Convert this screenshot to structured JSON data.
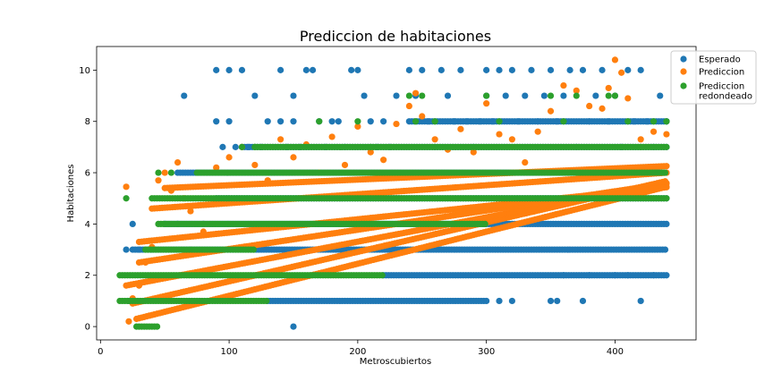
{
  "chart_data": {
    "type": "scatter",
    "title": "Prediccion de habitaciones",
    "xlabel": "Metroscubiertos",
    "ylabel": "Habitaciones",
    "xlim": [
      -3,
      463
    ],
    "ylim": [
      -0.52,
      10.92
    ],
    "xticks": [
      0,
      100,
      200,
      300,
      400
    ],
    "yticks": [
      0,
      2,
      4,
      6,
      8,
      10
    ],
    "legend_position": "top-right",
    "grid": false,
    "series": [
      {
        "name": "Esperado",
        "color": "#1f77b4",
        "points": [
          [
            20,
            3
          ],
          [
            25,
            4
          ],
          [
            22,
            1
          ],
          [
            30,
            3
          ],
          [
            40,
            3
          ],
          [
            50,
            4
          ],
          [
            60,
            4
          ],
          [
            65,
            9
          ],
          [
            70,
            3
          ],
          [
            80,
            4
          ],
          [
            90,
            10
          ],
          [
            90,
            8
          ],
          [
            95,
            7
          ],
          [
            100,
            10
          ],
          [
            100,
            8
          ],
          [
            105,
            7
          ],
          [
            110,
            10
          ],
          [
            115,
            7
          ],
          [
            120,
            9
          ],
          [
            125,
            7
          ],
          [
            130,
            8
          ],
          [
            140,
            10
          ],
          [
            140,
            8
          ],
          [
            145,
            7
          ],
          [
            150,
            9
          ],
          [
            150,
            8
          ],
          [
            155,
            7
          ],
          [
            160,
            10
          ],
          [
            165,
            10
          ],
          [
            170,
            8
          ],
          [
            175,
            7
          ],
          [
            180,
            8
          ],
          [
            185,
            8
          ],
          [
            190,
            7
          ],
          [
            195,
            10
          ],
          [
            200,
            10
          ],
          [
            205,
            9
          ],
          [
            210,
            8
          ],
          [
            215,
            7
          ],
          [
            220,
            8
          ],
          [
            225,
            7
          ],
          [
            230,
            9
          ],
          [
            240,
            10
          ],
          [
            245,
            9
          ],
          [
            250,
            10
          ],
          [
            255,
            8
          ],
          [
            260,
            7
          ],
          [
            265,
            10
          ],
          [
            270,
            9
          ],
          [
            275,
            8
          ],
          [
            280,
            10
          ],
          [
            285,
            8
          ],
          [
            290,
            7
          ],
          [
            295,
            8
          ],
          [
            300,
            10
          ],
          [
            300,
            9
          ],
          [
            305,
            8
          ],
          [
            310,
            10
          ],
          [
            315,
            9
          ],
          [
            320,
            10
          ],
          [
            325,
            8
          ],
          [
            330,
            9
          ],
          [
            335,
            10
          ],
          [
            340,
            8
          ],
          [
            345,
            9
          ],
          [
            350,
            10
          ],
          [
            355,
            8
          ],
          [
            360,
            9
          ],
          [
            365,
            10
          ],
          [
            370,
            7
          ],
          [
            375,
            10
          ],
          [
            380,
            8
          ],
          [
            385,
            9
          ],
          [
            390,
            10
          ],
          [
            395,
            8
          ],
          [
            400,
            9
          ],
          [
            405,
            7
          ],
          [
            410,
            10
          ],
          [
            415,
            8
          ],
          [
            420,
            10
          ],
          [
            425,
            8
          ],
          [
            430,
            7
          ],
          [
            435,
            9
          ],
          [
            440,
            8
          ],
          [
            310,
            1
          ],
          [
            320,
            1
          ],
          [
            350,
            1
          ],
          [
            355,
            1
          ],
          [
            375,
            1
          ],
          [
            420,
            1
          ],
          [
            360,
            2
          ],
          [
            380,
            2
          ],
          [
            400,
            2
          ],
          [
            410,
            2
          ],
          [
            430,
            2
          ],
          [
            150,
            0
          ]
        ],
        "bands": [
          {
            "y": 1,
            "x0": 130,
            "x1": 300
          },
          {
            "y": 2,
            "x0": 220,
            "x1": 440
          },
          {
            "y": 3,
            "x0": 25,
            "x1": 440
          },
          {
            "y": 4,
            "x0": 50,
            "x1": 440
          },
          {
            "y": 5,
            "x0": 90,
            "x1": 440
          },
          {
            "y": 6,
            "x0": 60,
            "x1": 440
          },
          {
            "y": 7,
            "x0": 110,
            "x1": 440
          },
          {
            "y": 8,
            "x0": 240,
            "x1": 440
          }
        ]
      },
      {
        "name": "Prediccion",
        "color": "#ff7f0e",
        "points": [
          [
            20,
            5.45
          ],
          [
            22,
            0.2
          ],
          [
            25,
            1.1
          ],
          [
            30,
            1.6
          ],
          [
            35,
            2.5
          ],
          [
            40,
            3.1
          ],
          [
            45,
            5.7
          ],
          [
            50,
            6.0
          ],
          [
            55,
            5.3
          ],
          [
            60,
            6.4
          ],
          [
            65,
            5.0
          ],
          [
            70,
            4.5
          ],
          [
            80,
            3.7
          ],
          [
            90,
            6.2
          ],
          [
            100,
            6.6
          ],
          [
            110,
            7.0
          ],
          [
            120,
            6.3
          ],
          [
            130,
            5.7
          ],
          [
            140,
            7.3
          ],
          [
            150,
            6.6
          ],
          [
            160,
            7.1
          ],
          [
            170,
            6.0
          ],
          [
            180,
            7.4
          ],
          [
            190,
            6.3
          ],
          [
            200,
            7.8
          ],
          [
            210,
            6.8
          ],
          [
            220,
            6.5
          ],
          [
            230,
            7.9
          ],
          [
            240,
            8.6
          ],
          [
            245,
            9.1
          ],
          [
            250,
            8.2
          ],
          [
            260,
            7.3
          ],
          [
            270,
            6.9
          ],
          [
            280,
            7.7
          ],
          [
            290,
            6.8
          ],
          [
            300,
            8.7
          ],
          [
            310,
            7.5
          ],
          [
            320,
            7.3
          ],
          [
            330,
            6.4
          ],
          [
            340,
            7.6
          ],
          [
            350,
            8.4
          ],
          [
            360,
            9.4
          ],
          [
            370,
            9.2
          ],
          [
            380,
            8.6
          ],
          [
            390,
            8.5
          ],
          [
            395,
            9.3
          ],
          [
            400,
            10.4
          ],
          [
            405,
            9.9
          ],
          [
            410,
            8.9
          ],
          [
            420,
            7.3
          ],
          [
            430,
            7.6
          ],
          [
            440,
            7.5
          ]
        ],
        "bands": [
          {
            "y0": 0.3,
            "x0": 28,
            "x1": 440,
            "slope": 0.0125
          },
          {
            "y0": 0.9,
            "x0": 25,
            "x1": 440,
            "slope": 0.0115
          },
          {
            "y0": 1.6,
            "x0": 20,
            "x1": 440,
            "slope": 0.0095
          },
          {
            "y0": 2.5,
            "x0": 30,
            "x1": 440,
            "slope": 0.0075
          },
          {
            "y0": 3.3,
            "x0": 30,
            "x1": 440,
            "slope": 0.0052
          },
          {
            "y0": 4.6,
            "x0": 40,
            "x1": 440,
            "slope": 0.0035
          },
          {
            "y0": 5.4,
            "x0": 50,
            "x1": 440,
            "slope": 0.0022
          }
        ]
      },
      {
        "name": "Prediccion\nredondeado",
        "color": "#2ca02c",
        "points": [
          [
            20,
            5
          ],
          [
            45,
            6
          ],
          [
            55,
            6
          ],
          [
            110,
            7
          ],
          [
            120,
            7
          ],
          [
            170,
            8
          ],
          [
            200,
            8
          ],
          [
            210,
            7
          ],
          [
            240,
            9
          ],
          [
            245,
            8
          ],
          [
            250,
            9
          ],
          [
            260,
            8
          ],
          [
            300,
            9
          ],
          [
            310,
            8
          ],
          [
            350,
            9
          ],
          [
            360,
            8
          ],
          [
            370,
            9
          ],
          [
            395,
            9
          ],
          [
            400,
            9
          ],
          [
            410,
            8
          ],
          [
            420,
            7
          ],
          [
            430,
            8
          ],
          [
            440,
            8
          ]
        ],
        "bands": [
          {
            "y": 0,
            "x0": 28,
            "x1": 45
          },
          {
            "y": 1,
            "x0": 15,
            "x1": 130
          },
          {
            "y": 2,
            "x0": 15,
            "x1": 220
          },
          {
            "y": 3,
            "x0": 35,
            "x1": 120
          },
          {
            "y": 4,
            "x0": 45,
            "x1": 300
          },
          {
            "y": 5,
            "x0": 40,
            "x1": 440
          },
          {
            "y": 6,
            "x0": 75,
            "x1": 440
          },
          {
            "y": 7,
            "x0": 120,
            "x1": 440
          }
        ]
      }
    ]
  }
}
